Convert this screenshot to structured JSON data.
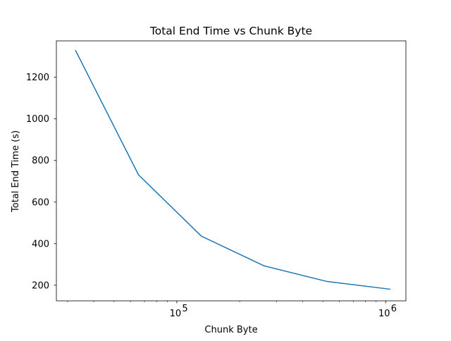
{
  "chart_data": {
    "type": "line",
    "title": "Total End Time vs Chunk Byte",
    "xlabel": "Chunk Byte",
    "ylabel": "Total End Time (s)",
    "xscale": "log",
    "xlim": [
      26500,
      1250000
    ],
    "ylim": [
      125,
      1375
    ],
    "grid": false,
    "legend": "none",
    "x": [
      32768,
      65536,
      131072,
      262144,
      524288,
      1048576
    ],
    "series": [
      {
        "values": [
          1328,
          731,
          436,
          293,
          218,
          181
        ],
        "color": "#1f77b4"
      }
    ],
    "xticks": [
      {
        "value": 100000,
        "base": "10",
        "exp": "5"
      },
      {
        "value": 1000000,
        "base": "10",
        "exp": "6"
      }
    ],
    "xminor_ticks": [
      30000,
      40000,
      50000,
      60000,
      70000,
      80000,
      90000,
      200000,
      300000,
      400000,
      500000,
      600000,
      700000,
      800000,
      900000
    ],
    "yticks": [
      {
        "value": 200,
        "label": "200"
      },
      {
        "value": 400,
        "label": "400"
      },
      {
        "value": 600,
        "label": "600"
      },
      {
        "value": 800,
        "label": "800"
      },
      {
        "value": 1000,
        "label": "1000"
      },
      {
        "value": 1200,
        "label": "1200"
      }
    ]
  }
}
